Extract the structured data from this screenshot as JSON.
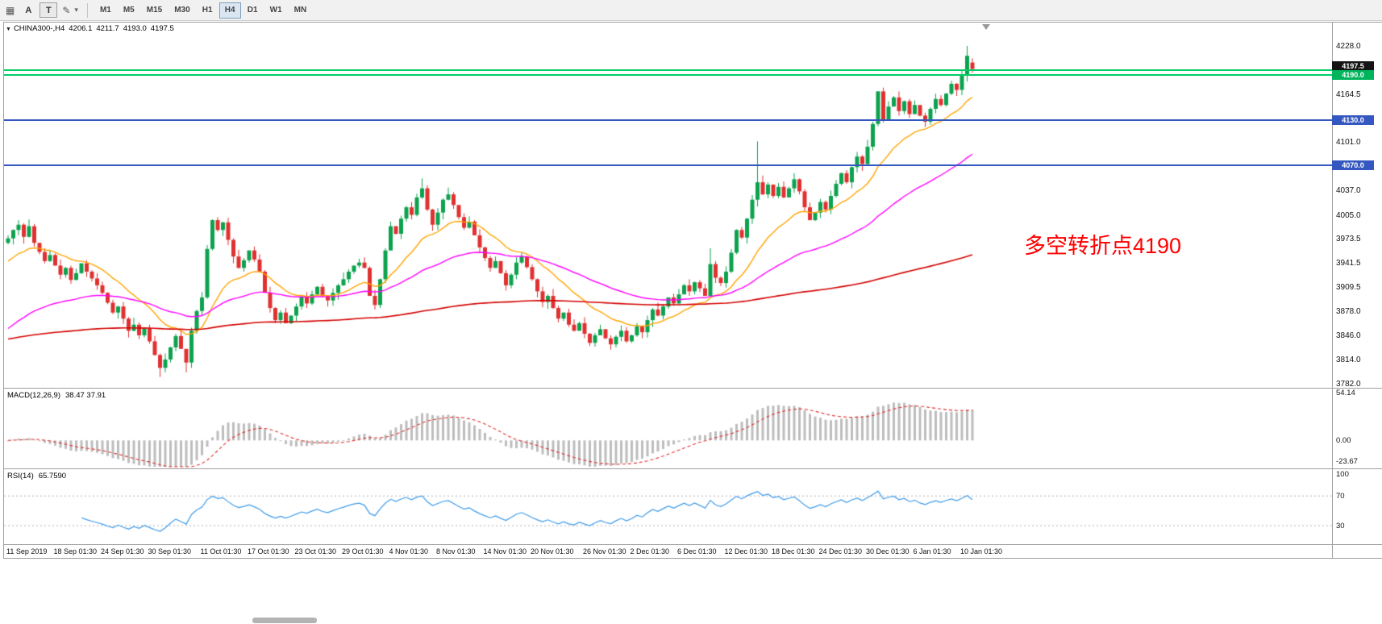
{
  "toolbar": {
    "buttons": {
      "annotate": "A",
      "text": "T"
    },
    "periods": [
      "M1",
      "M5",
      "M15",
      "M30",
      "H1",
      "H4",
      "D1",
      "W1",
      "MN"
    ],
    "active_period": "H4"
  },
  "chart": {
    "title": {
      "symbol": "CHINA300-,H4",
      "open": "4206.1",
      "high": "4211.7",
      "low": "4193.0",
      "close": "4197.5"
    },
    "annotation": {
      "text": "多空转折点4190",
      "color": "#ff0000"
    }
  },
  "price_axis": {
    "labels": [
      "4228.0",
      "4164.5",
      "4101.0",
      "4037.0",
      "4005.0",
      "3973.5",
      "3941.5",
      "3909.5",
      "3878.0",
      "3846.0",
      "3814.0",
      "3782.0"
    ],
    "badges": [
      {
        "text": "4197.5",
        "price": 4197.5,
        "bg": "#141414",
        "type": "bid-price"
      },
      {
        "text": "4190.0",
        "price": 4190.0,
        "bg": "#00b45c",
        "type": "level"
      },
      {
        "text": "4130.0",
        "price": 4130.0,
        "bg": "#3558c0",
        "type": "level"
      },
      {
        "text": "4070.0",
        "price": 4070.0,
        "bg": "#3558c0",
        "type": "level"
      }
    ]
  },
  "price_levels": [
    {
      "price": 4196.0,
      "color": "#00cc66"
    },
    {
      "price": 4190.0,
      "color": "#00cc66"
    },
    {
      "price": 4130.0,
      "color": "#3558c0"
    },
    {
      "price": 4070.0,
      "color": "#3558c0"
    }
  ],
  "macd_panel": {
    "label": "MACD(12,26,9)",
    "values": "38.47 37.91",
    "axis_labels": [
      "54.14",
      "0.00",
      "-23.67"
    ],
    "fast": 12,
    "slow": 26,
    "signal": 9
  },
  "rsi_panel": {
    "label": "RSI(14)",
    "value": "65.7590",
    "axis_labels": [
      "100",
      "70",
      "30"
    ],
    "period": 14,
    "levels": [
      70,
      30
    ]
  },
  "time_axis": {
    "labels": [
      {
        "text": "11 Sep 2019",
        "candle": 0
      },
      {
        "text": "18 Sep 01:30",
        "candle": 9
      },
      {
        "text": "24 Sep 01:30",
        "candle": 18
      },
      {
        "text": "30 Sep 01:30",
        "candle": 27
      },
      {
        "text": "11 Oct 01:30",
        "candle": 37
      },
      {
        "text": "17 Oct 01:30",
        "candle": 46
      },
      {
        "text": "23 Oct 01:30",
        "candle": 55
      },
      {
        "text": "29 Oct 01:30",
        "candle": 64
      },
      {
        "text": "4 Nov 01:30",
        "candle": 73
      },
      {
        "text": "8 Nov 01:30",
        "candle": 82
      },
      {
        "text": "14 Nov 01:30",
        "candle": 91
      },
      {
        "text": "20 Nov 01:30",
        "candle": 100
      },
      {
        "text": "26 Nov 01:30",
        "candle": 110
      },
      {
        "text": "2 Dec 01:30",
        "candle": 119
      },
      {
        "text": "6 Dec 01:30",
        "candle": 128
      },
      {
        "text": "12 Dec 01:30",
        "candle": 137
      },
      {
        "text": "18 Dec 01:30",
        "candle": 146
      },
      {
        "text": "24 Dec 01:30",
        "candle": 155
      },
      {
        "text": "30 Dec 01:30",
        "candle": 164
      },
      {
        "text": "6 Jan 01:30",
        "candle": 173
      },
      {
        "text": "10 Jan 01:30",
        "candle": 182
      }
    ]
  },
  "chart_data": {
    "type": "candlestick",
    "symbol": "CHINA300-",
    "timeframe": "H4",
    "title": "CHINA300-,H4 4206.1 4211.7 4193.0 4197.5",
    "ohlc_last": {
      "open": 4206.1,
      "high": 4211.7,
      "low": 4193.0,
      "close": 4197.5
    },
    "y_range": [
      3782.0,
      4228.0
    ],
    "levels": [
      4196.0,
      4190.0,
      4130.0,
      4070.0
    ],
    "first_open": 3968,
    "closes": [
      3974,
      3985,
      3992,
      3976,
      3990,
      3968,
      3956,
      3944,
      3952,
      3938,
      3926,
      3935,
      3919,
      3928,
      3941,
      3930,
      3921,
      3912,
      3902,
      3889,
      3876,
      3884,
      3868,
      3852,
      3860,
      3846,
      3855,
      3838,
      3820,
      3803,
      3814,
      3830,
      3845,
      3828,
      3810,
      3852,
      3878,
      3896,
      3960,
      3998,
      3985,
      3995,
      3972,
      3950,
      3935,
      3945,
      3958,
      3946,
      3930,
      3902,
      3882,
      3866,
      3876,
      3862,
      3872,
      3884,
      3896,
      3888,
      3900,
      3910,
      3898,
      3892,
      3902,
      3912,
      3920,
      3930,
      3938,
      3942,
      3935,
      3898,
      3886,
      3920,
      3958,
      3990,
      3980,
      4000,
      4015,
      4005,
      4028,
      4040,
      4012,
      3992,
      4008,
      4025,
      4032,
      4018,
      4002,
      3988,
      3996,
      3978,
      3962,
      3948,
      3935,
      3944,
      3928,
      3912,
      3926,
      3942,
      3950,
      3936,
      3920,
      3904,
      3890,
      3898,
      3882,
      3868,
      3876,
      3860,
      3852,
      3862,
      3848,
      3836,
      3846,
      3854,
      3842,
      3834,
      3844,
      3852,
      3838,
      3846,
      3858,
      3850,
      3866,
      3880,
      3872,
      3884,
      3896,
      3888,
      3900,
      3912,
      3904,
      3916,
      3908,
      3898,
      3940,
      3922,
      3915,
      3930,
      3955,
      3985,
      3975,
      4000,
      4025,
      4048,
      4032,
      4045,
      4030,
      4042,
      4028,
      4040,
      4052,
      4036,
      4015,
      3998,
      4008,
      4022,
      4012,
      4030,
      4046,
      4060,
      4048,
      4068,
      4082,
      4072,
      4095,
      4125,
      4168,
      4130,
      4148,
      4160,
      4142,
      4155,
      4138,
      4150,
      4136,
      4128,
      4145,
      4158,
      4150,
      4165,
      4178,
      4170,
      4190,
      4215,
      4197.5
    ],
    "wick_pattern": [
      4,
      1,
      6,
      2,
      9,
      3,
      0,
      5,
      7,
      2,
      8,
      1,
      3,
      6,
      0,
      4,
      2,
      7,
      5,
      1
    ],
    "overrides": {
      "29": {
        "low": 3791.0
      },
      "34": {
        "low": 3797.0
      },
      "79": {
        "high": 4053.0
      },
      "134": {
        "high": 3961.0
      },
      "143": {
        "high": 4102.0
      },
      "183": {
        "high": 4228.0
      },
      "184": {
        "open": 4206.1,
        "high": 4211.7,
        "low": 4193.0,
        "close": 4197.5
      }
    },
    "ma_lines": [
      {
        "name": "ema-fast",
        "period": 16,
        "seed": 3940,
        "color": "#ffa500"
      },
      {
        "name": "ema-mid",
        "period": 50,
        "seed": 3850,
        "color": "#ff00ff"
      },
      {
        "name": "ema-slow",
        "period": 250,
        "seed": 3840,
        "color": "#d40000"
      }
    ],
    "colors": {
      "up": "#0ca24e",
      "down": "#e03131",
      "macd_hist": "#bdbdbd",
      "macd_signal": "#e03131",
      "rsi": "#3e9be9"
    }
  }
}
